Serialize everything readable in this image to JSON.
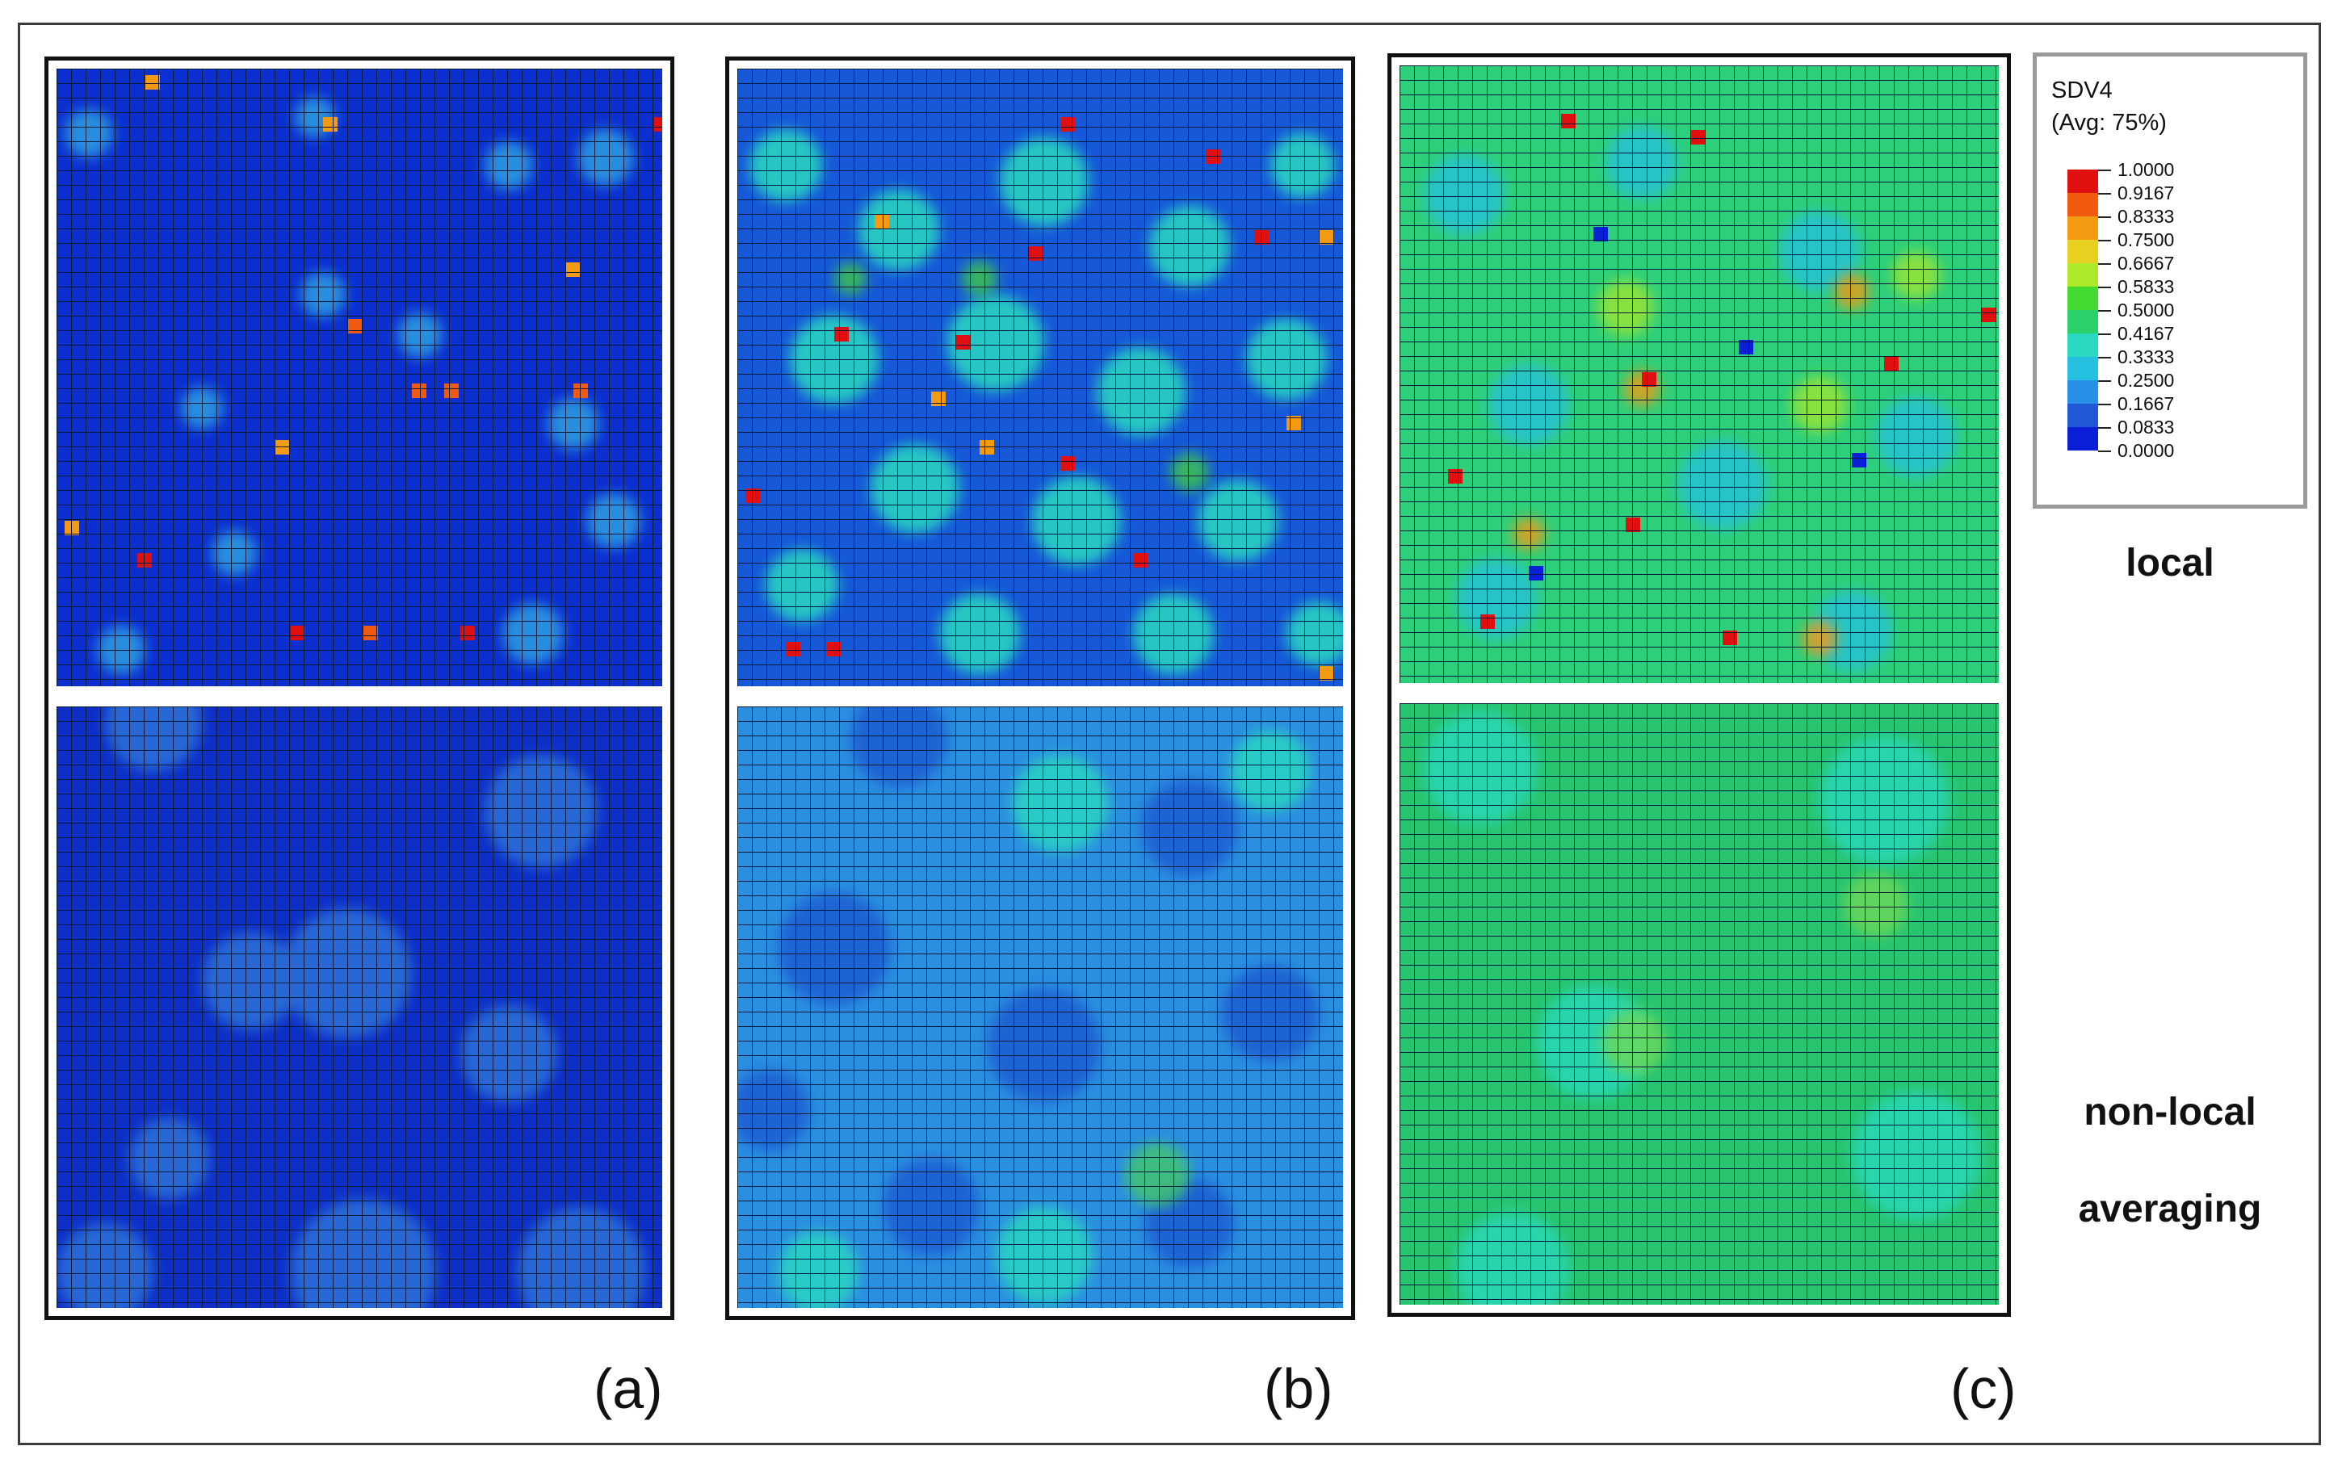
{
  "legend": {
    "variable": "SDV4",
    "averaging": "(Avg: 75%)",
    "levels": [
      "1.0000",
      "0.9167",
      "0.8333",
      "0.7500",
      "0.6667",
      "0.5833",
      "0.5000",
      "0.4167",
      "0.3333",
      "0.2500",
      "0.1667",
      "0.0833",
      "0.0000"
    ],
    "colors": [
      "#e01010",
      "#f25a10",
      "#f39a12",
      "#e8d020",
      "#aee82a",
      "#44d930",
      "#2ad06a",
      "#2adac0",
      "#25c0e0",
      "#2690e6",
      "#2158d6",
      "#0c1fd8"
    ]
  },
  "row_labels": {
    "top": "local",
    "bottom_line1": "non-local",
    "bottom_line2": "averaging"
  },
  "panels": [
    {
      "id": "a",
      "label": "(a)",
      "local_base": "#0c2fd0",
      "nonlocal_base": "#0d2fc8"
    },
    {
      "id": "b",
      "label": "(b)",
      "local_base": "#1658d8",
      "nonlocal_base": "#2b8fe0"
    },
    {
      "id": "c",
      "label": "(c)",
      "local_base": "#2ecf7a",
      "nonlocal_base": "#28c470"
    }
  ]
}
